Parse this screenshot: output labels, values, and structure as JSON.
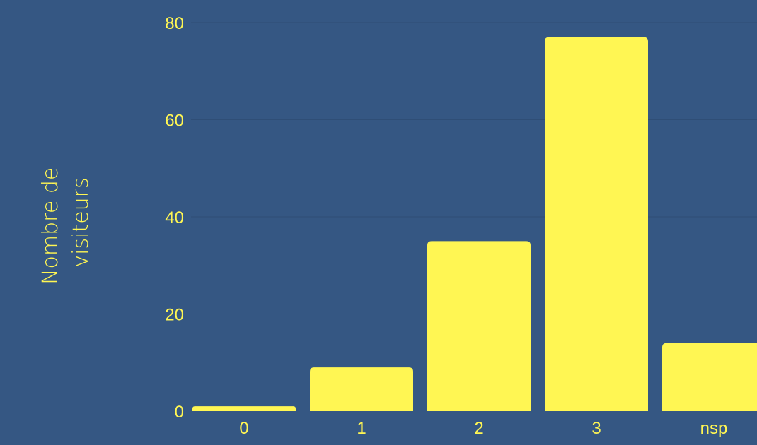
{
  "chart_data": {
    "type": "bar",
    "categories": [
      "0",
      "1",
      "2",
      "3",
      "nsp"
    ],
    "values": [
      1,
      9,
      35,
      77,
      14
    ],
    "title": "",
    "xlabel": "",
    "ylabel_lines": [
      "Nombre de",
      "visiteurs"
    ],
    "ylim": [
      0,
      80
    ],
    "yticks": [
      "0",
      "20",
      "40",
      "60",
      "80"
    ],
    "grid": true,
    "legend": "none"
  },
  "colors": {
    "background": "#355783",
    "bar": "#fff653",
    "text": "#fff653",
    "grid": "#2f4e76"
  }
}
